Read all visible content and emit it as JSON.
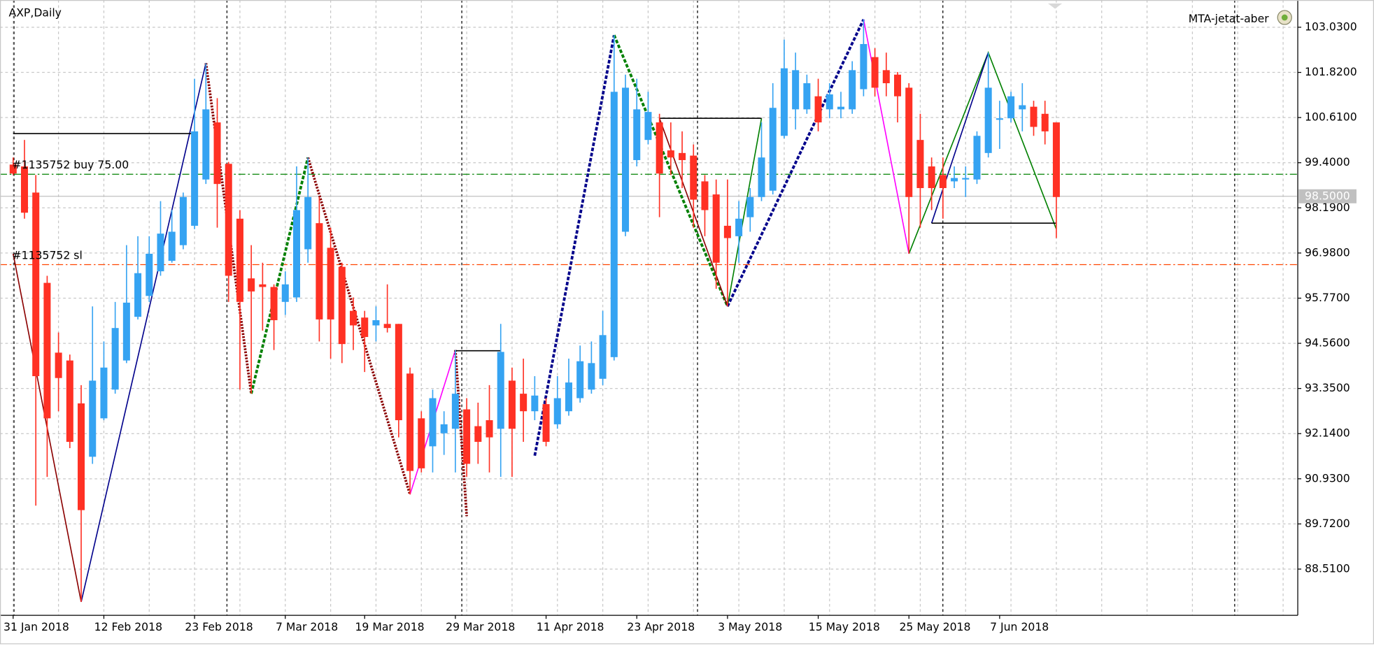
{
  "chart_data": {
    "type": "candlestick",
    "title": "AXP,Daily",
    "indicator_label": "MTA-jetat-aber",
    "categories": [
      "31 Jan 2018",
      null,
      null,
      null,
      null,
      null,
      null,
      null,
      "12 Feb 2018",
      null,
      null,
      null,
      null,
      null,
      null,
      null,
      "23 Feb 2018",
      null,
      null,
      null,
      null,
      null,
      null,
      null,
      "7 Mar 2018",
      null,
      null,
      null,
      null,
      null,
      null,
      "19 Mar 2018",
      null,
      null,
      null,
      null,
      null,
      null,
      null,
      "29 Mar 2018",
      null,
      null,
      null,
      null,
      null,
      null,
      null,
      "11 Apr 2018",
      null,
      null,
      null,
      null,
      null,
      null,
      null,
      "23 Apr 2018",
      null,
      null,
      null,
      null,
      null,
      null,
      null,
      "3 May 2018",
      null,
      null,
      null,
      null,
      null,
      null,
      null,
      "15 May 2018",
      null,
      null,
      null,
      null,
      null,
      null,
      null,
      "25 May 2018",
      null,
      null,
      null,
      null,
      null,
      null,
      null,
      "7 Jun 2018",
      null,
      null,
      null,
      null,
      null
    ],
    "open": [
      99.35,
      99.3,
      98.6,
      96.18,
      94.31,
      94.1,
      92.95,
      91.52,
      92.55,
      93.32,
      94.1,
      95.27,
      95.83,
      96.49,
      96.77,
      97.19,
      97.71,
      98.95,
      100.48,
      99.37,
      97.9,
      96.3,
      96.14,
      96.07,
      95.67,
      95.79,
      97.08,
      97.78,
      97.12,
      96.61,
      95.43,
      95.25,
      95.04,
      95.08,
      95.08,
      93.75,
      92.55,
      91.8,
      92.15,
      92.27,
      92.79,
      92.34,
      92.5,
      92.27,
      93.56,
      93.21,
      92.74,
      92.93,
      92.39,
      92.74,
      93.09,
      93.32,
      93.61,
      94.19,
      97.55,
      99.47,
      100.01,
      100.48,
      99.73,
      99.66,
      99.59,
      98.9,
      98.55,
      97.71,
      97.43,
      97.94,
      98.48,
      98.65,
      100.12,
      100.83,
      100.83,
      101.18,
      100.83,
      100.83,
      100.83,
      101.37,
      102.23,
      101.88,
      101.76,
      101.41,
      100.01,
      99.3,
      99.07,
      98.9,
      98.95,
      98.95,
      99.66,
      100.55,
      100.59,
      100.83,
      100.9,
      100.71,
      100.48
    ],
    "high": [
      99.54,
      100.01,
      99.07,
      96.37,
      94.85,
      94.26,
      93.44,
      95.55,
      94.61,
      95.67,
      97.19,
      97.43,
      97.43,
      98.37,
      98.13,
      98.6,
      101.65,
      102.07,
      101.13,
      99.42,
      98.13,
      97.19,
      96.72,
      96.14,
      96.49,
      99.3,
      99.54,
      98.48,
      97.66,
      96.72,
      95.79,
      95.43,
      95.55,
      96.14,
      95.08,
      93.91,
      92.74,
      93.32,
      92.74,
      94.38,
      93.09,
      92.97,
      93.44,
      95.08,
      93.91,
      94.15,
      93.68,
      93.09,
      93.68,
      94.15,
      94.5,
      94.61,
      95.43,
      102.82,
      101.76,
      101.65,
      101.3,
      100.71,
      100.48,
      100.24,
      99.89,
      99.07,
      98.95,
      98.95,
      98.37,
      98.72,
      100.48,
      101.53,
      102.7,
      102.35,
      101.76,
      101.65,
      101.53,
      101.3,
      102.12,
      103.24,
      102.47,
      102.35,
      101.83,
      101.53,
      100.71,
      99.54,
      99.54,
      99.3,
      99.3,
      100.24,
      102.35,
      101.06,
      101.3,
      101.53,
      101.06,
      101.06,
      100.48
    ],
    "low": [
      99.07,
      97.9,
      90.21,
      90.98,
      92.74,
      91.75,
      87.63,
      91.33,
      92.5,
      93.21,
      94.03,
      95.2,
      95.67,
      96.37,
      96.72,
      97.08,
      97.62,
      98.83,
      97.66,
      95.67,
      93.32,
      93.21,
      94.9,
      94.38,
      95.32,
      95.67,
      96.72,
      94.61,
      94.15,
      94.03,
      94.38,
      93.79,
      94.61,
      94.85,
      92.04,
      90.51,
      91.1,
      91.1,
      91.57,
      91.1,
      90.98,
      91.33,
      91.1,
      90.98,
      90.98,
      91.92,
      92.5,
      91.8,
      92.27,
      92.62,
      92.97,
      93.21,
      93.44,
      94.1,
      97.43,
      99.3,
      99.89,
      97.94,
      99.07,
      98.72,
      97.66,
      97.43,
      96.02,
      95.55,
      96.72,
      97.55,
      98.37,
      98.55,
      100.05,
      100.29,
      100.71,
      100.24,
      100.59,
      100.59,
      100.71,
      101.18,
      101.18,
      101.18,
      100.48,
      96.96,
      97.66,
      98.13,
      97.9,
      98.72,
      98.48,
      98.83,
      99.54,
      99.77,
      100.48,
      100.24,
      100.12,
      99.89,
      97.38
    ],
    "close": [
      99.11,
      98.06,
      93.68,
      92.55,
      93.63,
      91.92,
      90.09,
      93.56,
      93.91,
      94.97,
      95.65,
      96.44,
      96.96,
      97.5,
      97.55,
      98.48,
      100.24,
      100.83,
      98.83,
      96.37,
      95.67,
      95.95,
      96.07,
      95.18,
      96.14,
      98.13,
      98.48,
      95.2,
      95.2,
      94.54,
      95.04,
      94.73,
      95.18,
      94.97,
      92.5,
      91.14,
      91.21,
      93.09,
      92.39,
      93.21,
      91.33,
      91.92,
      92.04,
      94.33,
      92.27,
      92.74,
      93.16,
      91.92,
      93.09,
      93.51,
      94.08,
      94.03,
      94.78,
      101.3,
      101.41,
      100.83,
      100.76,
      99.11,
      99.54,
      99.47,
      98.41,
      98.13,
      96.72,
      97.38,
      97.9,
      98.48,
      99.54,
      100.87,
      101.93,
      101.88,
      101.53,
      100.48,
      101.23,
      100.9,
      101.88,
      102.58,
      101.41,
      101.53,
      101.18,
      98.48,
      98.72,
      98.72,
      98.72,
      98.99,
      98.99,
      100.12,
      101.41,
      100.59,
      101.18,
      100.94,
      100.36,
      100.24,
      98.48
    ],
    "up_color": "#35a3f2",
    "down_color": "#ff3124",
    "ylim": [
      87.27,
      103.76
    ],
    "yticks": [
      {
        "value": 88.51,
        "label": "88.5100"
      },
      {
        "value": 89.72,
        "label": "89.7200"
      },
      {
        "value": 90.93,
        "label": "90.9300"
      },
      {
        "value": 92.14,
        "label": "92.1400"
      },
      {
        "value": 93.35,
        "label": "93.3500"
      },
      {
        "value": 94.56,
        "label": "94.5600"
      },
      {
        "value": 95.77,
        "label": "95.7700"
      },
      {
        "value": 96.98,
        "label": "96.9800"
      },
      {
        "value": 98.19,
        "label": "98.1900"
      },
      {
        "value": 99.4,
        "label": "99.4000"
      },
      {
        "value": 100.61,
        "label": "100.6100"
      },
      {
        "value": 101.82,
        "label": "101.8200"
      },
      {
        "value": 103.03,
        "label": "103.0300"
      }
    ],
    "grid": true,
    "last_price": {
      "value": 98.5,
      "label": "98.5000"
    },
    "levels": [
      {
        "label": "#1135752 buy 75.00",
        "value": 99.09,
        "color": "#008000"
      },
      {
        "label": "#1135752 sl",
        "value": 96.67,
        "color": "#ff4500"
      }
    ],
    "overlays": [
      {
        "color": "#8b0000",
        "style": "solid",
        "points": [
          [
            0,
            96.96
          ],
          [
            6,
            87.63
          ]
        ]
      },
      {
        "color": "#00008b",
        "style": "solid",
        "points": [
          [
            6,
            87.63
          ],
          [
            17,
            102.07
          ]
        ]
      },
      {
        "color": "#8b0000",
        "style": "dotted",
        "points": [
          [
            17,
            102.07
          ],
          [
            21,
            93.21
          ]
        ]
      },
      {
        "color": "#008000",
        "style": "dashed",
        "points": [
          [
            21,
            93.21
          ],
          [
            26,
            99.54
          ]
        ]
      },
      {
        "color": "#8b0000",
        "style": "dotted",
        "points": [
          [
            26,
            99.54
          ],
          [
            35,
            90.51
          ]
        ]
      },
      {
        "color": "#ff00ff",
        "style": "solid",
        "points": [
          [
            35,
            90.51
          ],
          [
            39,
            94.38
          ]
        ]
      },
      {
        "color": "#8b0000",
        "style": "dotted",
        "points": [
          [
            39,
            94.38
          ],
          [
            40,
            89.93
          ]
        ]
      },
      {
        "color": "#00008b",
        "style": "dashed",
        "points": [
          [
            46,
            91.55
          ],
          [
            53,
            102.82
          ]
        ]
      },
      {
        "color": "#008000",
        "style": "dashed",
        "points": [
          [
            53,
            102.82
          ],
          [
            63,
            95.55
          ]
        ]
      },
      {
        "color": "#8b0000",
        "style": "solid",
        "points": [
          [
            57,
            100.59
          ],
          [
            63,
            95.55
          ]
        ]
      },
      {
        "color": "#008000",
        "style": "solid",
        "points": [
          [
            63,
            95.55
          ],
          [
            66,
            100.59
          ]
        ]
      },
      {
        "color": "#00008b",
        "style": "dashed",
        "points": [
          [
            63,
            95.55
          ],
          [
            75,
            103.24
          ]
        ]
      },
      {
        "color": "#ff00ff",
        "style": "solid",
        "points": [
          [
            75,
            103.24
          ],
          [
            79,
            96.96
          ]
        ]
      },
      {
        "color": "#008000",
        "style": "solid",
        "points": [
          [
            79,
            96.96
          ],
          [
            86,
            102.35
          ],
          [
            92,
            97.62
          ]
        ]
      },
      {
        "color": "#00008b",
        "style": "solid",
        "points": [
          [
            81,
            97.78
          ],
          [
            86,
            102.35
          ]
        ]
      },
      {
        "color": "#000000",
        "style": "solid",
        "points": [
          [
            0,
            100.18
          ],
          [
            16,
            100.18
          ]
        ]
      },
      {
        "color": "#000000",
        "style": "solid",
        "points": [
          [
            57,
            100.59
          ],
          [
            66,
            100.59
          ]
        ]
      },
      {
        "color": "#000000",
        "style": "solid",
        "points": [
          [
            39,
            94.36
          ],
          [
            43,
            94.36
          ]
        ]
      },
      {
        "color": "#000000",
        "style": "solid",
        "points": [
          [
            81,
            97.78
          ],
          [
            92,
            97.78
          ]
        ]
      }
    ]
  }
}
